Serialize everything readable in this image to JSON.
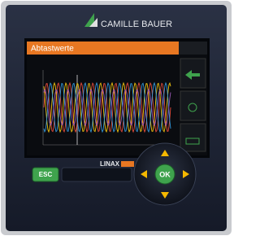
{
  "brand": "CAMILLE BAUER",
  "screen": {
    "title": "Abtastwerte"
  },
  "product": "LINAX",
  "buttons": {
    "esc": "ESC",
    "ok": "OK"
  }
}
